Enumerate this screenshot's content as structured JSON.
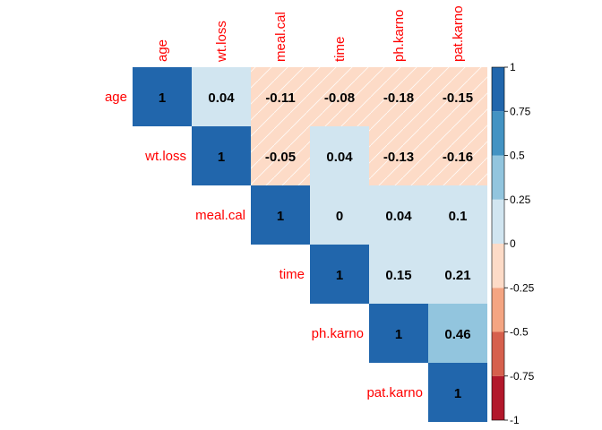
{
  "chart_data": {
    "type": "heatmap",
    "subtype": "correlation-matrix-upper",
    "variables": [
      "age",
      "wt.loss",
      "meal.cal",
      "time",
      "ph.karno",
      "pat.karno"
    ],
    "matrix": [
      [
        1,
        0.04,
        -0.11,
        -0.08,
        -0.18,
        -0.15
      ],
      [
        0.04,
        1,
        -0.05,
        0.04,
        -0.13,
        -0.16
      ],
      [
        -0.11,
        -0.05,
        1,
        0,
        0.04,
        0.1
      ],
      [
        -0.08,
        0.04,
        0,
        1,
        0.15,
        0.21
      ],
      [
        -0.18,
        -0.13,
        0.04,
        0.15,
        1,
        0.46
      ],
      [
        -0.15,
        -0.16,
        0.1,
        0.21,
        0.46,
        1
      ]
    ],
    "triangle": "upper",
    "labels_color": "#ff0000",
    "color_scale": {
      "range": [
        -1,
        1
      ],
      "bins": [
        {
          "from": -1.0,
          "to": -0.75,
          "color": "#B2182B"
        },
        {
          "from": -0.75,
          "to": -0.5,
          "color": "#D6604D"
        },
        {
          "from": -0.5,
          "to": -0.25,
          "color": "#F4A582"
        },
        {
          "from": -0.25,
          "to": 0.0,
          "color": "#FDDBC7"
        },
        {
          "from": 0.0,
          "to": 0.25,
          "color": "#D1E5F0"
        },
        {
          "from": 0.25,
          "to": 0.5,
          "color": "#92C5DE"
        },
        {
          "from": 0.5,
          "to": 0.75,
          "color": "#4393C3"
        },
        {
          "from": 0.75,
          "to": 1.0,
          "color": "#2166AC"
        }
      ],
      "ticks": [
        "1",
        "0.75",
        "0.5",
        "0.25",
        "0",
        "-0.25",
        "-0.5",
        "-0.75",
        "-1"
      ]
    },
    "negative_hatch": true,
    "xlabel": "",
    "ylabel": ""
  }
}
